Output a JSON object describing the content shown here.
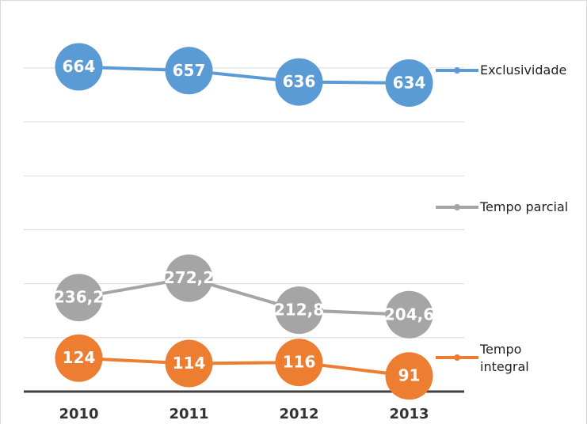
{
  "chart_data": {
    "type": "line",
    "categories": [
      "2010",
      "2011",
      "2012",
      "2013"
    ],
    "series": [
      {
        "name": "Exclusividade",
        "color": "#5b9bd5",
        "values": [
          664,
          657,
          636,
          634
        ]
      },
      {
        "name": "Tempo parcial",
        "color": "#a5a5a5",
        "values": [
          236.2,
          272.2,
          212.8,
          204.6
        ],
        "value_labels": [
          "236,2",
          "272,2",
          "212,8",
          "204,6"
        ]
      },
      {
        "name": "Tempo integral",
        "color": "#ed7d31",
        "values": [
          124,
          114,
          116,
          91
        ]
      }
    ],
    "ylim": [
      62,
      763
    ],
    "yticks": [
      62,
      162,
      262,
      362,
      462,
      562,
      662
    ],
    "grid": true
  }
}
